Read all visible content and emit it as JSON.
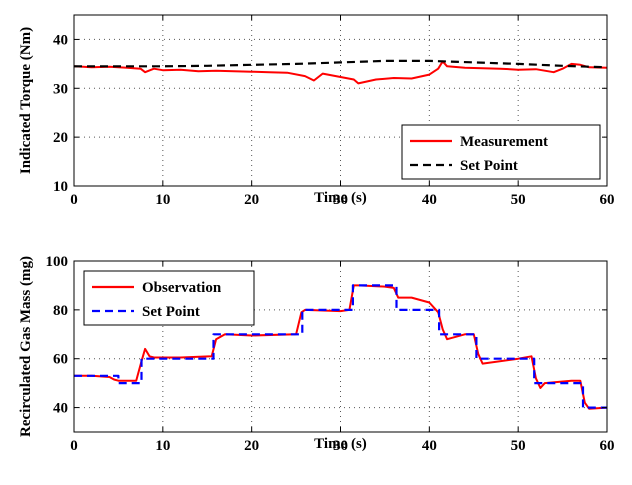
{
  "chart_data": [
    {
      "type": "line",
      "title": "",
      "xlabel": "Time (s)",
      "ylabel": "Indicated Torque (Nm)",
      "xlim": [
        0,
        60
      ],
      "ylim": [
        10,
        45
      ],
      "xticks": [
        0,
        10,
        20,
        30,
        40,
        50,
        60
      ],
      "yticks": [
        10,
        20,
        30,
        40
      ],
      "grid": "dotted",
      "legend_position": "bottom-right",
      "series": [
        {
          "name": "Measurement",
          "color": "#ff0000",
          "style": "solid",
          "x": [
            0,
            2,
            4,
            6,
            7.5,
            8,
            9,
            10,
            12,
            14,
            16,
            18,
            20,
            22,
            24,
            26,
            27,
            28,
            30,
            31.5,
            32,
            34,
            36,
            38,
            40,
            41,
            41.5,
            42,
            44,
            46,
            48,
            50,
            52,
            54,
            55,
            56,
            57,
            58,
            60
          ],
          "y": [
            34.5,
            34.3,
            34.4,
            34.2,
            34.0,
            33.3,
            34.0,
            33.7,
            33.8,
            33.5,
            33.6,
            33.5,
            33.4,
            33.3,
            33.2,
            32.5,
            31.6,
            33.0,
            32.3,
            31.8,
            31.0,
            31.8,
            32.1,
            32.0,
            32.8,
            34.0,
            35.5,
            34.5,
            34.2,
            34.1,
            34.0,
            33.8,
            33.9,
            33.3,
            34.0,
            35.0,
            34.8,
            34.3,
            34.2
          ]
        },
        {
          "name": "Set Point",
          "color": "#000000",
          "style": "dashed",
          "x": [
            0,
            5,
            10,
            15,
            20,
            25,
            30,
            35,
            40,
            45,
            50,
            55,
            60
          ],
          "y": [
            34.5,
            34.5,
            34.5,
            34.6,
            34.8,
            35.0,
            35.3,
            35.6,
            35.6,
            35.3,
            35.0,
            34.6,
            34.3
          ]
        }
      ]
    },
    {
      "type": "line",
      "title": "",
      "xlabel": "Time (s)",
      "ylabel": "Recirculated Gas Mass (mg)",
      "xlim": [
        0,
        60
      ],
      "ylim": [
        30,
        100
      ],
      "xticks": [
        0,
        10,
        20,
        30,
        40,
        50,
        60
      ],
      "yticks": [
        40,
        60,
        80,
        100
      ],
      "grid": "dotted",
      "legend_position": "top-left",
      "series": [
        {
          "name": "Observation",
          "color": "#ff0000",
          "style": "solid",
          "x": [
            0,
            2,
            4,
            4.5,
            5,
            7,
            7.6,
            8,
            8.5,
            9,
            12,
            15.5,
            16,
            17,
            20,
            25,
            25.6,
            26,
            30,
            31,
            31.5,
            32,
            35,
            36,
            36.5,
            38,
            40,
            41,
            41.5,
            42,
            44,
            45,
            45.5,
            46,
            50,
            51.5,
            52,
            52.5,
            53,
            56,
            57,
            57.5,
            58,
            60
          ],
          "y": [
            53,
            53,
            52.5,
            51.5,
            51,
            51,
            59,
            64,
            61,
            60.5,
            60.5,
            61,
            68,
            70,
            69.5,
            70,
            79,
            80,
            79.5,
            80,
            90,
            90,
            89.5,
            89,
            85,
            85,
            83,
            79,
            72,
            68,
            70,
            70,
            62,
            58,
            60,
            61,
            52,
            48,
            50,
            51,
            51,
            42,
            39.5,
            40
          ]
        },
        {
          "name": "Set Point",
          "color": "#0000ff",
          "style": "dashed",
          "x": [
            0,
            5,
            5,
            7.6,
            7.6,
            15.7,
            15.7,
            25.7,
            25.7,
            31.4,
            31.4,
            36.3,
            36.3,
            41.1,
            41.1,
            45.3,
            45.3,
            51.8,
            51.8,
            57.3,
            57.3,
            60
          ],
          "y": [
            53,
            53,
            50,
            50,
            60,
            60,
            70,
            70,
            80,
            80,
            90,
            90,
            80,
            80,
            70,
            70,
            60,
            60,
            50,
            50,
            40,
            40
          ]
        }
      ]
    }
  ]
}
